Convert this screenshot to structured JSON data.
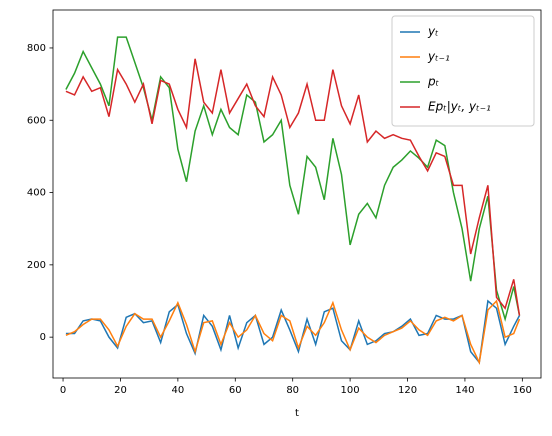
{
  "chart_data": {
    "type": "line",
    "xlabel": "t",
    "x": [
      1,
      4,
      7,
      10,
      13,
      16,
      19,
      22,
      25,
      28,
      31,
      34,
      37,
      40,
      43,
      46,
      49,
      52,
      55,
      58,
      61,
      64,
      67,
      70,
      73,
      76,
      79,
      82,
      85,
      88,
      91,
      94,
      97,
      100,
      103,
      106,
      109,
      112,
      115,
      118,
      121,
      124,
      127,
      130,
      133,
      136,
      139,
      142,
      145,
      148,
      151,
      154,
      157,
      159
    ],
    "series": [
      {
        "name": "yₜ",
        "color": "#1f77b4",
        "values": [
          10,
          10,
          45,
          50,
          45,
          0,
          -30,
          55,
          65,
          40,
          45,
          -15,
          70,
          90,
          10,
          -45,
          60,
          30,
          -35,
          60,
          -30,
          40,
          60,
          -20,
          0,
          75,
          20,
          -40,
          50,
          -20,
          70,
          80,
          -10,
          -35,
          45,
          -20,
          -10,
          10,
          15,
          30,
          50,
          5,
          10,
          60,
          50,
          50,
          60,
          -40,
          -70,
          100,
          80,
          -20,
          30,
          60
        ]
      },
      {
        "name": "yₜ₋₁",
        "color": "#ff7f0e",
        "values": [
          5,
          15,
          35,
          50,
          50,
          20,
          -25,
          30,
          65,
          50,
          50,
          0,
          45,
          95,
          35,
          -40,
          40,
          45,
          -20,
          40,
          0,
          20,
          60,
          10,
          -10,
          60,
          45,
          -30,
          30,
          5,
          40,
          95,
          20,
          -35,
          25,
          0,
          -15,
          5,
          15,
          25,
          45,
          20,
          5,
          45,
          55,
          45,
          60,
          -20,
          -70,
          75,
          100,
          0,
          10,
          50
        ]
      },
      {
        "name": "pₜ",
        "color": "#2ca02c",
        "values": [
          685,
          730,
          790,
          745,
          700,
          640,
          830,
          830,
          760,
          690,
          600,
          720,
          690,
          520,
          430,
          570,
          640,
          560,
          630,
          580,
          560,
          670,
          650,
          540,
          560,
          600,
          420,
          340,
          500,
          470,
          380,
          550,
          450,
          255,
          340,
          370,
          330,
          420,
          470,
          490,
          515,
          495,
          470,
          545,
          530,
          400,
          300,
          155,
          300,
          390,
          130,
          50,
          140,
          60
        ]
      },
      {
        "name": "Epₜ|yₜ, yₜ₋₁",
        "color": "#d62728",
        "values": [
          680,
          670,
          720,
          680,
          690,
          610,
          740,
          700,
          650,
          700,
          590,
          710,
          700,
          630,
          580,
          770,
          650,
          620,
          740,
          620,
          660,
          700,
          640,
          610,
          720,
          670,
          580,
          620,
          700,
          600,
          600,
          740,
          640,
          590,
          670,
          540,
          570,
          550,
          560,
          550,
          545,
          500,
          460,
          510,
          500,
          420,
          420,
          230,
          330,
          420,
          110,
          80,
          160,
          60
        ]
      }
    ],
    "xlim": [
      -3.5,
      166.5
    ],
    "xticks": [
      0,
      20,
      40,
      60,
      80,
      100,
      120,
      140,
      160
    ],
    "ylim": [
      -113,
      905
    ],
    "yticks": [
      0,
      200,
      400,
      600,
      800
    ],
    "legend": "upper right"
  }
}
